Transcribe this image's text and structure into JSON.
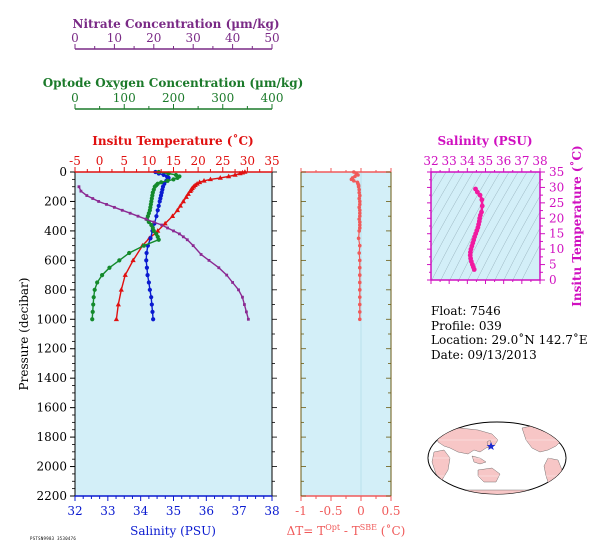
{
  "colors": {
    "plot_bg": "#d3eff8",
    "temperature": "#e01010",
    "salinity": "#0a1ad0",
    "oxygen": "#138a2c",
    "nitrate": "#8b2a92",
    "delta_t": "#f05a5a",
    "ts": "#f01aa0",
    "axis_nitrate": "#7a2a86",
    "axis_oxygen": "#1b7a2a",
    "axis_temp": "#e01010",
    "axis_salinity": "#0a1ad0",
    "axis_delta": "#f05a5a",
    "axis_ts": "#d010c0",
    "axis_right": "#6b5a10",
    "land": "#f7c6c6",
    "ocean": "#ffffff"
  },
  "labels": {
    "nitrate_title": "Nitrate Concentration (µm/kg)",
    "oxygen_title": "Optode Oxygen Concentration (µm/kg)",
    "temp_title": "Insitu Temperature (˚C)",
    "salinity_bottom_title": "Salinity (PSU)",
    "pressure_title": "Pressure (decibar)",
    "delta_title": "ΔT= T",
    "delta_sup1": "Opt",
    "delta_mid": " - T",
    "delta_sup2": "SBE",
    "delta_end": " (˚C)",
    "ts_salinity_title": "Salinity (PSU)",
    "ts_temp_title": "Insitu Temperature (˚C)",
    "footer_code": "PSTSN9983 3530476"
  },
  "info": {
    "float": "Float:  7546",
    "profile": "Profile:  039",
    "location": "Location:  29.0˚N  142.7˚E",
    "date": "Date:  09/13/2013"
  },
  "chart_data": [
    {
      "type": "line",
      "panel": "main_profiles",
      "y_axis": {
        "label": "Pressure (decibar)",
        "range": [
          2200,
          0
        ],
        "ticks": [
          0,
          200,
          400,
          600,
          800,
          1000,
          1200,
          1400,
          1600,
          1800,
          2000,
          2200
        ]
      },
      "axes": {
        "nitrate": {
          "label": "Nitrate Concentration (µm/kg)",
          "range": [
            0,
            50
          ],
          "ticks": [
            0,
            10,
            20,
            30,
            40,
            50
          ]
        },
        "oxygen": {
          "label": "Optode Oxygen Concentration (µm/kg)",
          "range": [
            0,
            400
          ],
          "ticks": [
            0,
            100,
            200,
            300,
            400
          ]
        },
        "temperature": {
          "label": "Insitu Temperature (˚C)",
          "range": [
            -5,
            35
          ],
          "ticks": [
            -5,
            0,
            5,
            10,
            15,
            20,
            25,
            30,
            35
          ]
        },
        "salinity": {
          "label": "Salinity (PSU)",
          "range": [
            32,
            38
          ],
          "ticks": [
            32,
            33,
            34,
            35,
            36,
            37,
            38
          ]
        }
      },
      "series": [
        {
          "variable": "temperature",
          "pressure": [
            0,
            5,
            10,
            20,
            30,
            40,
            50,
            60,
            70,
            80,
            90,
            100,
            110,
            120,
            130,
            150,
            170,
            200,
            230,
            260,
            300,
            350,
            400,
            450,
            500,
            600,
            700,
            800,
            900,
            1000
          ],
          "values": [
            29.5,
            29.0,
            28.5,
            27.5,
            26.2,
            24.5,
            22.5,
            21.2,
            20.3,
            19.8,
            19.4,
            19.1,
            18.8,
            18.6,
            18.4,
            18.0,
            17.6,
            17.0,
            16.4,
            15.8,
            14.8,
            13.3,
            11.8,
            10.1,
            8.7,
            6.8,
            5.2,
            4.4,
            3.8,
            3.4
          ]
        },
        {
          "variable": "salinity",
          "pressure": [
            0,
            10,
            20,
            30,
            40,
            50,
            60,
            80,
            100,
            120,
            140,
            160,
            180,
            200,
            230,
            260,
            300,
            350,
            400,
            450,
            500,
            550,
            600,
            650,
            700,
            750,
            800,
            850,
            900,
            950,
            1000
          ],
          "values": [
            34.45,
            34.55,
            34.7,
            34.8,
            34.85,
            34.82,
            34.78,
            34.72,
            34.68,
            34.66,
            34.64,
            34.62,
            34.6,
            34.58,
            34.55,
            34.52,
            34.48,
            34.42,
            34.36,
            34.3,
            34.22,
            34.18,
            34.17,
            34.19,
            34.21,
            34.25,
            34.28,
            34.32,
            34.34,
            34.36,
            34.38
          ]
        },
        {
          "variable": "oxygen",
          "pressure": [
            0,
            10,
            20,
            30,
            40,
            50,
            60,
            70,
            80,
            90,
            100,
            120,
            140,
            160,
            180,
            200,
            220,
            240,
            260,
            280,
            300,
            320,
            340,
            360,
            380,
            400,
            420,
            440,
            460,
            500,
            550,
            600,
            650,
            700,
            750,
            800,
            850,
            900,
            950,
            1000
          ],
          "values": [
            170,
            190,
            205,
            212,
            208,
            200,
            188,
            175,
            168,
            165,
            162,
            160,
            158,
            157,
            156,
            155,
            154,
            153,
            152,
            150,
            148,
            146,
            150,
            155,
            158,
            160,
            165,
            168,
            170,
            140,
            110,
            90,
            70,
            55,
            45,
            40,
            38,
            37,
            36,
            35
          ]
        },
        {
          "variable": "nitrate",
          "pressure": [
            100,
            130,
            160,
            180,
            200,
            220,
            240,
            260,
            280,
            300,
            320,
            340,
            360,
            380,
            400,
            420,
            440,
            460,
            500,
            560,
            600,
            650,
            700,
            750,
            800,
            850,
            900,
            950,
            1000
          ],
          "values": [
            1,
            1.5,
            3,
            4.5,
            6,
            8,
            10,
            12,
            14,
            16,
            18,
            20,
            22,
            23.5,
            25,
            26.5,
            27.5,
            28.5,
            30,
            32,
            34,
            36.5,
            38.5,
            40,
            41.5,
            42.5,
            43,
            43.5,
            44
          ]
        }
      ]
    },
    {
      "type": "scatter",
      "panel": "delta_t",
      "x_axis": {
        "label": "ΔT= T Opt - T SBE (˚C)",
        "range": [
          -1.0,
          0.5
        ],
        "ticks": [
          -1.0,
          -0.5,
          0.0,
          0.5
        ]
      },
      "y_axis": {
        "range": [
          2200,
          0
        ]
      },
      "pressure": [
        0,
        10,
        20,
        30,
        40,
        50,
        60,
        70,
        80,
        90,
        100,
        120,
        140,
        160,
        180,
        200,
        220,
        240,
        260,
        280,
        300,
        320,
        340,
        360,
        380,
        400,
        450,
        500,
        550,
        600,
        650,
        700,
        750,
        800,
        850,
        900,
        950,
        1000
      ],
      "values": [
        -0.12,
        -0.08,
        -0.05,
        -0.1,
        -0.14,
        -0.16,
        -0.12,
        -0.06,
        -0.05,
        -0.04,
        -0.04,
        -0.03,
        -0.03,
        -0.02,
        -0.03,
        -0.02,
        -0.02,
        -0.03,
        -0.02,
        -0.02,
        -0.02,
        -0.03,
        -0.02,
        -0.02,
        -0.02,
        -0.03,
        -0.04,
        -0.02,
        -0.03,
        -0.02,
        -0.02,
        -0.02,
        -0.02,
        -0.02,
        -0.02,
        -0.02,
        -0.02,
        -0.02
      ]
    },
    {
      "type": "scatter",
      "panel": "ts_diagram",
      "x_axis": {
        "label": "Salinity (PSU)",
        "range": [
          32,
          38
        ],
        "ticks": [
          32,
          33,
          34,
          35,
          36,
          37,
          38
        ]
      },
      "y_axis": {
        "label": "Insitu Temperature (˚C)",
        "range": [
          0,
          35
        ],
        "ticks": [
          0,
          5,
          10,
          15,
          20,
          25,
          30,
          35
        ]
      },
      "points": [
        [
          34.45,
          29.5
        ],
        [
          34.55,
          28.5
        ],
        [
          34.7,
          27.5
        ],
        [
          34.8,
          26.0
        ],
        [
          34.82,
          24.0
        ],
        [
          34.78,
          22.0
        ],
        [
          34.72,
          21.0
        ],
        [
          34.68,
          20.0
        ],
        [
          34.66,
          19.0
        ],
        [
          34.62,
          18.0
        ],
        [
          34.58,
          17.0
        ],
        [
          34.52,
          16.0
        ],
        [
          34.46,
          15.0
        ],
        [
          34.4,
          14.0
        ],
        [
          34.35,
          13.0
        ],
        [
          34.3,
          12.0
        ],
        [
          34.25,
          11.0
        ],
        [
          34.2,
          10.0
        ],
        [
          34.17,
          9.0
        ],
        [
          34.16,
          8.0
        ],
        [
          34.18,
          7.0
        ],
        [
          34.22,
          6.0
        ],
        [
          34.28,
          5.0
        ],
        [
          34.33,
          4.2
        ],
        [
          34.38,
          3.4
        ]
      ]
    }
  ]
}
